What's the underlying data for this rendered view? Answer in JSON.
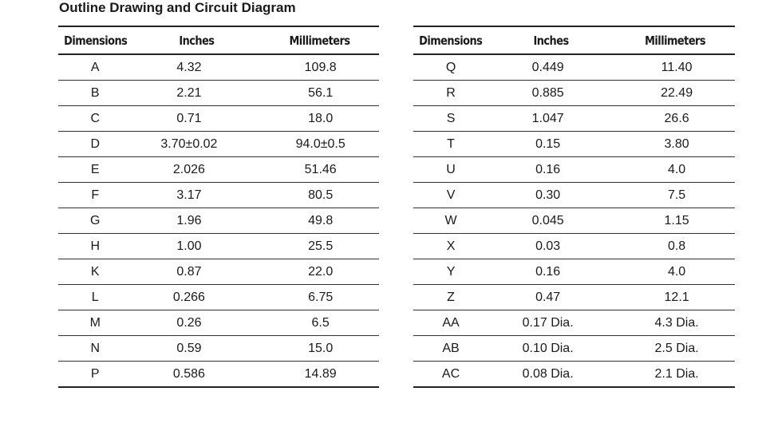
{
  "title": "Outline Drawing and Circuit Diagram",
  "headers": {
    "dimensions": "Dimensions",
    "inches": "Inches",
    "millimeters": "Millimeters"
  },
  "left_table": [
    {
      "dim": "A",
      "in": "4.32",
      "mm": "109.8"
    },
    {
      "dim": "B",
      "in": "2.21",
      "mm": "56.1"
    },
    {
      "dim": "C",
      "in": "0.71",
      "mm": "18.0"
    },
    {
      "dim": "D",
      "in": "3.70±0.02",
      "mm": "94.0±0.5"
    },
    {
      "dim": "E",
      "in": "2.026",
      "mm": "51.46"
    },
    {
      "dim": "F",
      "in": "3.17",
      "mm": "80.5"
    },
    {
      "dim": "G",
      "in": "1.96",
      "mm": "49.8"
    },
    {
      "dim": "H",
      "in": "1.00",
      "mm": "25.5"
    },
    {
      "dim": "K",
      "in": "0.87",
      "mm": "22.0"
    },
    {
      "dim": "L",
      "in": "0.266",
      "mm": "6.75"
    },
    {
      "dim": "M",
      "in": "0.26",
      "mm": "6.5"
    },
    {
      "dim": "N",
      "in": "0.59",
      "mm": "15.0"
    },
    {
      "dim": "P",
      "in": "0.586",
      "mm": "14.89"
    }
  ],
  "right_table": [
    {
      "dim": "Q",
      "in": "0.449",
      "mm": "11.40"
    },
    {
      "dim": "R",
      "in": "0.885",
      "mm": "22.49"
    },
    {
      "dim": "S",
      "in": "1.047",
      "mm": "26.6"
    },
    {
      "dim": "T",
      "in": "0.15",
      "mm": "3.80"
    },
    {
      "dim": "U",
      "in": "0.16",
      "mm": "4.0"
    },
    {
      "dim": "V",
      "in": "0.30",
      "mm": "7.5"
    },
    {
      "dim": "W",
      "in": "0.045",
      "mm": "1.15"
    },
    {
      "dim": "X",
      "in": "0.03",
      "mm": "0.8"
    },
    {
      "dim": "Y",
      "in": "0.16",
      "mm": "4.0"
    },
    {
      "dim": "Z",
      "in": "0.47",
      "mm": "12.1"
    },
    {
      "dim": "AA",
      "in": "0.17 Dia.",
      "mm": "4.3 Dia."
    },
    {
      "dim": "AB",
      "in": "0.10 Dia.",
      "mm": "2.5 Dia."
    },
    {
      "dim": "AC",
      "in": "0.08 Dia.",
      "mm": "2.1 Dia."
    }
  ]
}
